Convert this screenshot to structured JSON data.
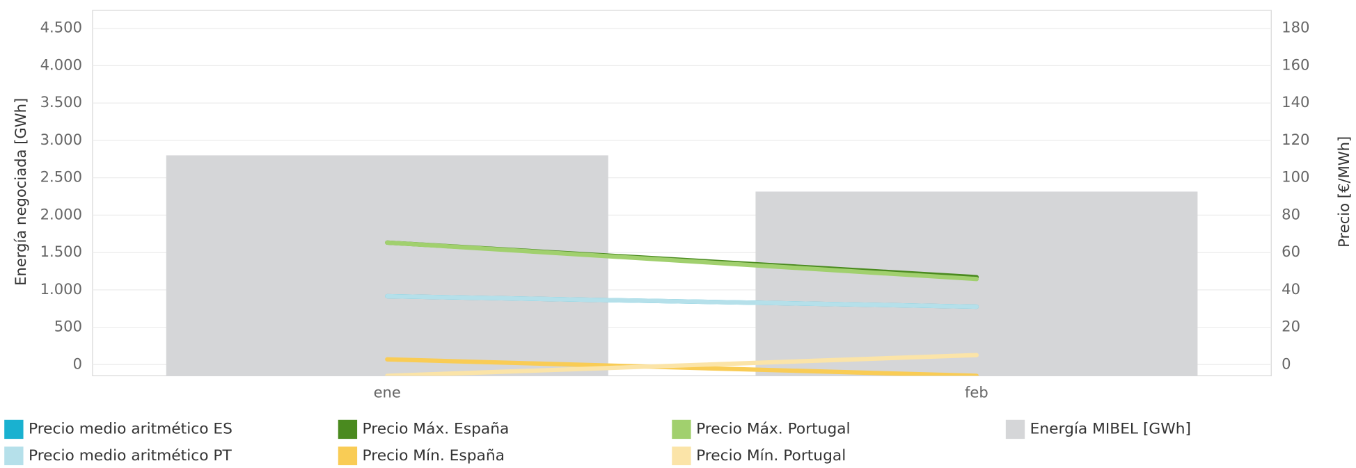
{
  "chart_data": {
    "type": "bar-line",
    "categories": [
      "ene",
      "feb"
    ],
    "y_label": "Energía negociada [GWh]",
    "y2_label": "Precio [€/MWh]",
    "ylim": [
      -150,
      4740
    ],
    "yticks": [
      0,
      500,
      {
        "value": 1000,
        "label": "1.000"
      },
      {
        "value": 1500,
        "label": "1.500"
      },
      {
        "value": 2000,
        "label": "2.000"
      },
      {
        "value": 2500,
        "label": "2.500"
      },
      {
        "value": 3000,
        "label": "3.000"
      },
      {
        "value": 3500,
        "label": "3.500"
      },
      {
        "value": 4000,
        "label": "4.000"
      },
      {
        "value": 4500,
        "label": "4.500"
      }
    ],
    "y2lim": [
      -6,
      189.6
    ],
    "y2ticks": [
      0,
      20,
      40,
      60,
      80,
      100,
      120,
      140,
      160,
      180
    ],
    "grid": true,
    "series": [
      {
        "name": "Precio medio aritmético ES",
        "color": "#19b1d0",
        "type": "line",
        "axis": "y2",
        "values": [
          36.6,
          31.0
        ]
      },
      {
        "name": "Precio medio aritmético PT",
        "color": "#b5e0ea",
        "type": "line",
        "axis": "y2",
        "values": [
          36.6,
          31.0
        ]
      },
      {
        "name": "Precio Máx. España",
        "color": "#4a8a1f",
        "type": "line",
        "axis": "y2",
        "values": [
          65.3,
          46.8
        ]
      },
      {
        "name": "Precio Mín. España",
        "color": "#f9cc55",
        "type": "line",
        "axis": "y2",
        "values": [
          2.8,
          -6
        ]
      },
      {
        "name": "Precio Máx. Portugal",
        "color": "#a1d06e",
        "type": "line",
        "axis": "y2",
        "values": [
          65.3,
          45.8
        ]
      },
      {
        "name": "Precio Mín. Portugal",
        "color": "#fbe4a8",
        "type": "line",
        "axis": "y2",
        "values": [
          -6,
          5.1
        ]
      },
      {
        "name": "Energía MIBEL [GWh]",
        "color": "#d5d6d8",
        "type": "bar",
        "values": [
          2800,
          2315
        ]
      }
    ]
  }
}
